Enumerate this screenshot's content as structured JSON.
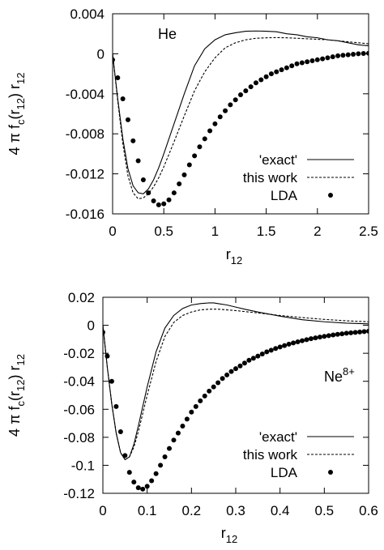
{
  "chart_data": [
    {
      "type": "line",
      "annotation": "He",
      "xlabel": "r",
      "xlabel_sub": "12",
      "ylabel": "4 π f",
      "ylabel_sub1": "c",
      "ylabel_mid": "(r",
      "ylabel_sub2": "12",
      "ylabel_end": ") r",
      "ylabel_sub3": "12",
      "xlim": [
        0,
        2.5
      ],
      "ylim": [
        -0.016,
        0.004
      ],
      "x_ticks": [
        0,
        0.5,
        1,
        1.5,
        2,
        2.5
      ],
      "x_tick_labels": [
        "0",
        "0.5",
        "1",
        "1.5",
        "2",
        "2.5"
      ],
      "y_ticks": [
        0.004,
        0,
        -0.004,
        -0.008,
        -0.012,
        -0.016
      ],
      "y_tick_labels": [
        "0.004",
        "0",
        "-0.004",
        "-0.008",
        "-0.012",
        "-0.016"
      ],
      "grid": false,
      "legend_position": "bottom-right",
      "series": [
        {
          "name": "'exact'",
          "style": "solid",
          "x": [
            0,
            0.05,
            0.1,
            0.15,
            0.2,
            0.25,
            0.3,
            0.35,
            0.4,
            0.45,
            0.5,
            0.6,
            0.7,
            0.8,
            0.9,
            1.0,
            1.1,
            1.2,
            1.3,
            1.4,
            1.5,
            1.6,
            1.7,
            1.8,
            1.9,
            2.0,
            2.1,
            2.2,
            2.3,
            2.4,
            2.5
          ],
          "y": [
            0,
            -0.0045,
            -0.0085,
            -0.0115,
            -0.0132,
            -0.0139,
            -0.014,
            -0.0135,
            -0.0126,
            -0.0114,
            -0.01,
            -0.007,
            -0.004,
            -0.0012,
            0.0005,
            0.0014,
            0.0019,
            0.0021,
            0.00225,
            0.00228,
            0.00225,
            0.0022,
            0.002,
            0.0019,
            0.0017,
            0.0016,
            0.0014,
            0.0013,
            0.0011,
            0.0009,
            0.0008
          ]
        },
        {
          "name": "this work",
          "style": "dashed",
          "x": [
            0,
            0.05,
            0.1,
            0.15,
            0.2,
            0.25,
            0.3,
            0.35,
            0.4,
            0.45,
            0.5,
            0.6,
            0.7,
            0.8,
            0.9,
            1.0,
            1.1,
            1.2,
            1.3,
            1.4,
            1.5,
            1.6,
            1.7,
            1.8,
            1.9,
            2.0,
            2.1,
            2.2,
            2.3,
            2.4,
            2.5
          ],
          "y": [
            0,
            -0.0047,
            -0.009,
            -0.0122,
            -0.0139,
            -0.0145,
            -0.0144,
            -0.014,
            -0.0133,
            -0.0124,
            -0.0113,
            -0.0088,
            -0.0062,
            -0.0037,
            -0.0018,
            -0.0004,
            0.0006,
            0.0011,
            0.0014,
            0.00155,
            0.0016,
            0.00162,
            0.0016,
            0.00155,
            0.0015,
            0.00145,
            0.0014,
            0.0013,
            0.0012,
            0.0011,
            0.001
          ]
        },
        {
          "name": "LDA",
          "style": "dots",
          "x": [
            0,
            0.05,
            0.1,
            0.15,
            0.2,
            0.25,
            0.3,
            0.35,
            0.4,
            0.45,
            0.5,
            0.55,
            0.6,
            0.65,
            0.7,
            0.75,
            0.8,
            0.85,
            0.9,
            0.95,
            1.0,
            1.05,
            1.1,
            1.15,
            1.2,
            1.25,
            1.3,
            1.35,
            1.4,
            1.45,
            1.5,
            1.55,
            1.6,
            1.65,
            1.7,
            1.75,
            1.8,
            1.85,
            1.9,
            1.95,
            2.0,
            2.05,
            2.1,
            2.15,
            2.2,
            2.25,
            2.3,
            2.35,
            2.4,
            2.45,
            2.5
          ],
          "y": [
            -0.0006,
            -0.0024,
            -0.0045,
            -0.0066,
            -0.0087,
            -0.0107,
            -0.0126,
            -0.0139,
            -0.0147,
            -0.0151,
            -0.015,
            -0.0146,
            -0.0139,
            -0.013,
            -0.0121,
            -0.0111,
            -0.0102,
            -0.0093,
            -0.0085,
            -0.0077,
            -0.007,
            -0.0063,
            -0.0057,
            -0.0051,
            -0.0046,
            -0.0041,
            -0.0037,
            -0.0033,
            -0.0029,
            -0.0026,
            -0.0023,
            -0.002,
            -0.0018,
            -0.0016,
            -0.0014,
            -0.0012,
            -0.001,
            -0.0009,
            -0.0008,
            -0.0007,
            -0.0006,
            -0.0005,
            -0.0004,
            -0.0003,
            -0.0002,
            -0.00015,
            -0.0001,
            -5e-05,
            0.0,
            3e-05,
            5e-05
          ]
        }
      ]
    },
    {
      "type": "line",
      "annotation": "Ne",
      "annotation_sup": "8+",
      "xlabel": "r",
      "xlabel_sub": "12",
      "ylabel": "4 π f",
      "ylabel_sub1": "c",
      "ylabel_mid": "(r",
      "ylabel_sub2": "12",
      "ylabel_end": ") r",
      "ylabel_sub3": "12",
      "xlim": [
        0,
        0.6
      ],
      "ylim": [
        -0.12,
        0.02
      ],
      "x_ticks": [
        0,
        0.1,
        0.2,
        0.3,
        0.4,
        0.5,
        0.6
      ],
      "x_tick_labels": [
        "0",
        "0.1",
        "0.2",
        "0.3",
        "0.4",
        "0.5",
        "0.6"
      ],
      "y_ticks": [
        0.02,
        0,
        -0.02,
        -0.04,
        -0.06,
        -0.08,
        -0.1,
        -0.12
      ],
      "y_tick_labels": [
        "0.02",
        "0",
        "-0.02",
        "-0.04",
        "-0.06",
        "-0.08",
        "-0.1",
        "-0.12"
      ],
      "grid": false,
      "legend_position": "bottom-right",
      "series": [
        {
          "name": "'exact'",
          "style": "solid",
          "x": [
            0,
            0.01,
            0.02,
            0.03,
            0.04,
            0.05,
            0.06,
            0.07,
            0.08,
            0.09,
            0.1,
            0.12,
            0.14,
            0.16,
            0.18,
            0.2,
            0.22,
            0.24,
            0.25,
            0.26,
            0.28,
            0.3,
            0.32,
            0.35,
            0.4,
            0.45,
            0.5,
            0.55,
            0.6
          ],
          "y": [
            0,
            -0.03,
            -0.056,
            -0.077,
            -0.091,
            -0.096,
            -0.094,
            -0.085,
            -0.072,
            -0.058,
            -0.044,
            -0.019,
            -0.002,
            0.007,
            0.012,
            0.0145,
            0.0155,
            0.016,
            0.016,
            0.0155,
            0.0145,
            0.013,
            0.0115,
            0.0095,
            0.0065,
            0.004,
            0.0025,
            0.0015,
            0.001
          ]
        },
        {
          "name": "this work",
          "style": "dashed",
          "x": [
            0,
            0.01,
            0.02,
            0.03,
            0.04,
            0.05,
            0.06,
            0.07,
            0.08,
            0.09,
            0.1,
            0.12,
            0.14,
            0.16,
            0.18,
            0.2,
            0.22,
            0.24,
            0.26,
            0.28,
            0.3,
            0.32,
            0.35,
            0.4,
            0.45,
            0.5,
            0.55,
            0.6
          ],
          "y": [
            0,
            -0.03,
            -0.056,
            -0.077,
            -0.091,
            -0.096,
            -0.094,
            -0.087,
            -0.076,
            -0.063,
            -0.05,
            -0.026,
            -0.008,
            0.002,
            0.007,
            0.0095,
            0.011,
            0.0115,
            0.0115,
            0.011,
            0.0105,
            0.0098,
            0.0088,
            0.007,
            0.0055,
            0.0042,
            0.0032,
            0.0025
          ]
        },
        {
          "name": "LDA",
          "style": "dots",
          "x": [
            0,
            0.01,
            0.02,
            0.03,
            0.04,
            0.05,
            0.06,
            0.07,
            0.08,
            0.09,
            0.1,
            0.11,
            0.12,
            0.13,
            0.14,
            0.15,
            0.16,
            0.17,
            0.18,
            0.19,
            0.2,
            0.21,
            0.22,
            0.23,
            0.24,
            0.25,
            0.26,
            0.27,
            0.28,
            0.29,
            0.3,
            0.31,
            0.32,
            0.33,
            0.34,
            0.35,
            0.36,
            0.37,
            0.38,
            0.39,
            0.4,
            0.41,
            0.42,
            0.43,
            0.44,
            0.45,
            0.46,
            0.47,
            0.48,
            0.49,
            0.5,
            0.51,
            0.52,
            0.53,
            0.54,
            0.55,
            0.56,
            0.57,
            0.58,
            0.59,
            0.6
          ],
          "y": [
            -0.005,
            -0.022,
            -0.04,
            -0.058,
            -0.076,
            -0.093,
            -0.105,
            -0.112,
            -0.116,
            -0.117,
            -0.115,
            -0.111,
            -0.106,
            -0.1,
            -0.094,
            -0.088,
            -0.082,
            -0.077,
            -0.072,
            -0.067,
            -0.062,
            -0.058,
            -0.054,
            -0.0505,
            -0.047,
            -0.044,
            -0.041,
            -0.038,
            -0.0355,
            -0.033,
            -0.031,
            -0.029,
            -0.027,
            -0.025,
            -0.0235,
            -0.022,
            -0.0205,
            -0.019,
            -0.0178,
            -0.0166,
            -0.0155,
            -0.0145,
            -0.0135,
            -0.0126,
            -0.0118,
            -0.011,
            -0.0103,
            -0.0096,
            -0.009,
            -0.0084,
            -0.0079,
            -0.0074,
            -0.0069,
            -0.0065,
            -0.0061,
            -0.0057,
            -0.0054,
            -0.0051,
            -0.0048,
            -0.0045,
            -0.0042
          ]
        }
      ]
    }
  ]
}
